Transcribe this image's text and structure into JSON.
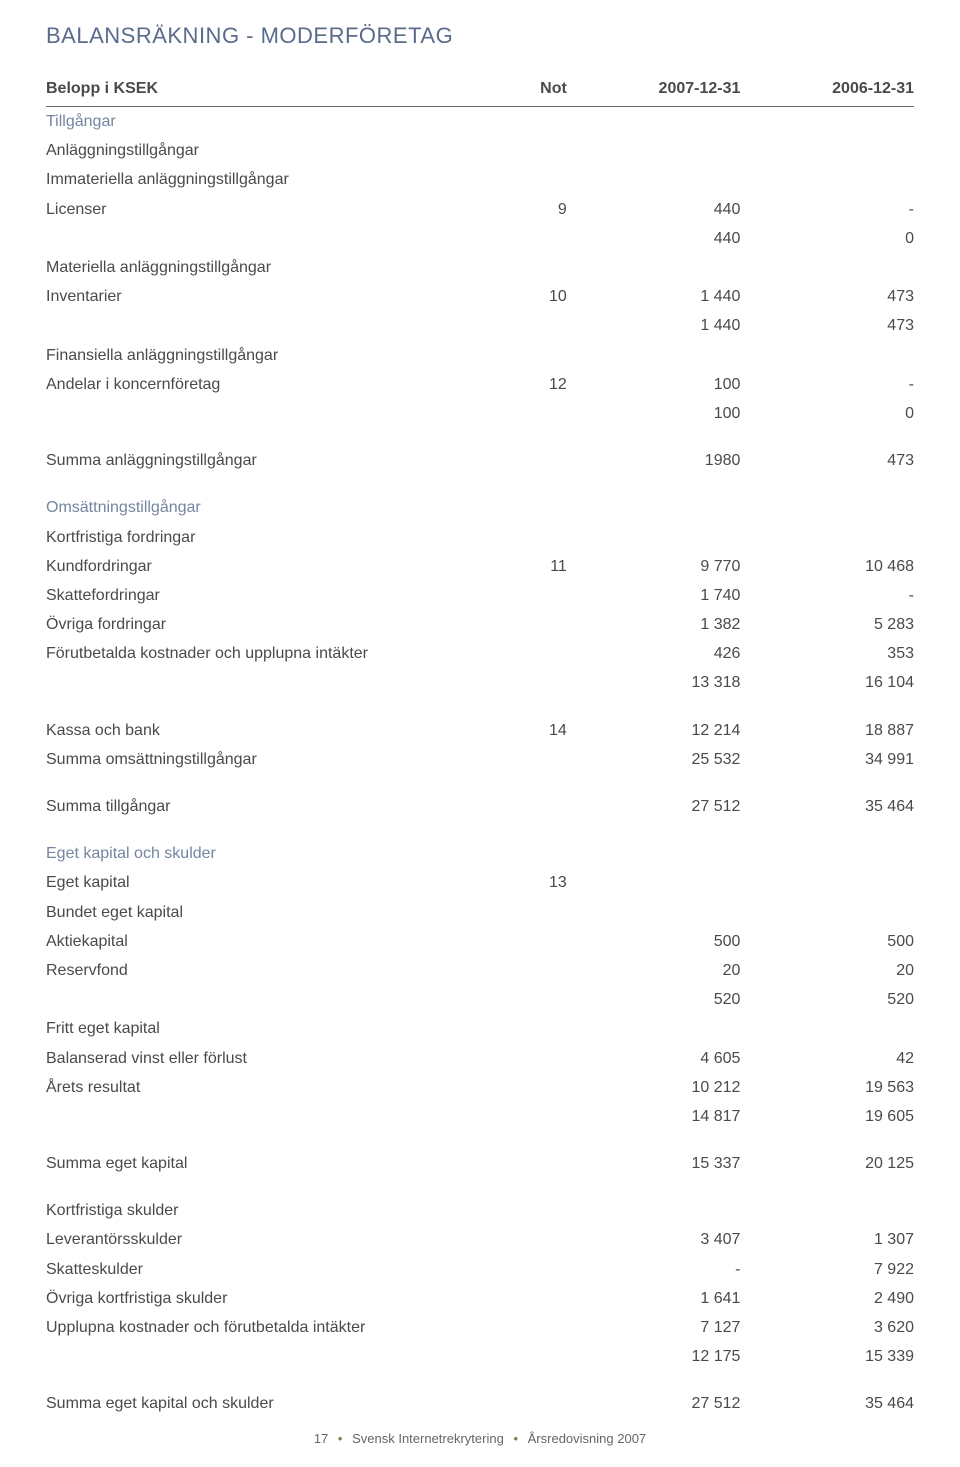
{
  "title": "BALANSRÄKNING - MODERFÖRETAG",
  "columns": {
    "label": "Belopp i KSEK",
    "not": "Not",
    "v1": "2007-12-31",
    "v2": "2006-12-31"
  },
  "rows": [
    {
      "type": "section",
      "label": "Tillgångar"
    },
    {
      "type": "bold",
      "label": "Anläggningstillgångar"
    },
    {
      "type": "bold",
      "label": "Immateriella anläggningstillgångar"
    },
    {
      "type": "row",
      "label": "Licenser",
      "not": "9",
      "v1": "440",
      "v2": "-"
    },
    {
      "type": "bold",
      "label": "",
      "v1": "440",
      "v2": "0"
    },
    {
      "type": "bold",
      "label": "Materiella anläggningstillgångar"
    },
    {
      "type": "row",
      "label": "Inventarier",
      "not": "10",
      "v1": "1 440",
      "v2": "473"
    },
    {
      "type": "bold",
      "label": "",
      "v1": "1 440",
      "v2": "473"
    },
    {
      "type": "bold",
      "label": "Finansiella anläggningstillgångar"
    },
    {
      "type": "row",
      "label": "Andelar i koncernföretag",
      "not": "12",
      "v1": "100",
      "v2": "-"
    },
    {
      "type": "bold",
      "label": "",
      "v1": "100",
      "v2": "0"
    },
    {
      "type": "spacer"
    },
    {
      "type": "bold",
      "label": "Summa anläggningstillgångar",
      "v1": "1980",
      "v2": "473"
    },
    {
      "type": "spacer"
    },
    {
      "type": "section",
      "label": "Omsättningstillgångar"
    },
    {
      "type": "bold",
      "label": "Kortfristiga fordringar"
    },
    {
      "type": "row",
      "label": "Kundfordringar",
      "not": "11",
      "v1": "9 770",
      "v2": "10 468"
    },
    {
      "type": "row",
      "label": "Skattefordringar",
      "v1": "1 740",
      "v2": "-"
    },
    {
      "type": "row",
      "label": "Övriga fordringar",
      "v1": "1 382",
      "v2": "5 283"
    },
    {
      "type": "row",
      "label": "Förutbetalda kostnader och upplupna intäkter",
      "v1": "426",
      "v2": "353"
    },
    {
      "type": "bold",
      "label": "",
      "v1": "13 318",
      "v2": "16 104"
    },
    {
      "type": "spacer"
    },
    {
      "type": "row",
      "label": "Kassa och bank",
      "not": "14",
      "v1": "12 214",
      "v2": "18 887"
    },
    {
      "type": "bold",
      "label": "Summa omsättningstillgångar",
      "v1": "25 532",
      "v2": "34 991"
    },
    {
      "type": "spacer"
    },
    {
      "type": "bold",
      "label": "Summa tillgångar",
      "v1": "27 512",
      "v2": "35 464"
    },
    {
      "type": "spacer"
    },
    {
      "type": "section",
      "label": "Eget kapital och skulder"
    },
    {
      "type": "bold",
      "label": "Eget kapital",
      "not": "13"
    },
    {
      "type": "bold",
      "label": "Bundet eget kapital"
    },
    {
      "type": "row",
      "label": "Aktiekapital",
      "v1": "500",
      "v2": "500"
    },
    {
      "type": "row",
      "label": "Reservfond",
      "v1": "20",
      "v2": "20"
    },
    {
      "type": "bold",
      "label": "",
      "v1": "520",
      "v2": "520"
    },
    {
      "type": "bold",
      "label": "Fritt eget kapital"
    },
    {
      "type": "row",
      "label": "Balanserad vinst eller förlust",
      "v1": "4 605",
      "v2": "42"
    },
    {
      "type": "row",
      "label": "Årets resultat",
      "v1": "10 212",
      "v2": "19 563"
    },
    {
      "type": "bold",
      "label": "",
      "v1": "14 817",
      "v2": "19 605"
    },
    {
      "type": "spacer"
    },
    {
      "type": "bold",
      "label": "Summa eget kapital",
      "v1": "15 337",
      "v2": "20 125"
    },
    {
      "type": "spacer"
    },
    {
      "type": "bold",
      "label": "Kortfristiga skulder"
    },
    {
      "type": "row",
      "label": "Leverantörsskulder",
      "v1": "3 407",
      "v2": "1 307"
    },
    {
      "type": "row",
      "label": "Skatteskulder",
      "v1": "-",
      "v2": "7 922"
    },
    {
      "type": "row",
      "label": "Övriga kortfristiga skulder",
      "v1": "1 641",
      "v2": "2 490"
    },
    {
      "type": "row",
      "label": "Upplupna kostnader och förutbetalda intäkter",
      "v1": "7 127",
      "v2": "3 620"
    },
    {
      "type": "bold",
      "label": "",
      "v1": "12 175",
      "v2": "15 339"
    },
    {
      "type": "spacer"
    },
    {
      "type": "bold",
      "label": "Summa eget kapital och skulder",
      "v1": "27 512",
      "v2": "35 464"
    }
  ],
  "footer": {
    "page": "17",
    "company": "Svensk Internetrekrytering",
    "report": "Årsredovisning 2007"
  },
  "colors": {
    "heading": "#5a6b8c",
    "section": "#7585a0",
    "text": "#4a4a4a",
    "rule": "#6a6a6a",
    "bullet": "#6a8a3a",
    "background": "#ffffff"
  }
}
